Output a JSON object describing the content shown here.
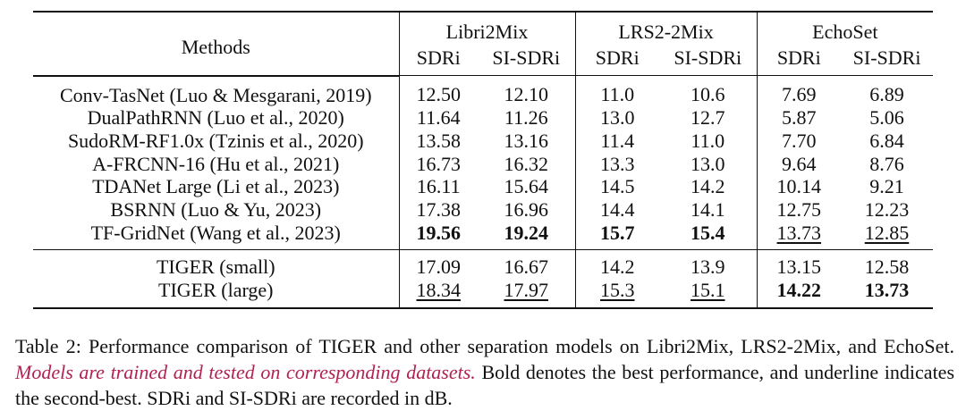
{
  "table": {
    "methods_header": "Methods",
    "groups": [
      {
        "name": "Libri2Mix",
        "metrics": [
          "SDRi",
          "SI-SDRi"
        ]
      },
      {
        "name": "LRS2-2Mix",
        "metrics": [
          "SDRi",
          "SI-SDRi"
        ]
      },
      {
        "name": "EchoSet",
        "metrics": [
          "SDRi",
          "SI-SDRi"
        ]
      }
    ],
    "rows": [
      {
        "method": "Conv-TasNet (Luo & Mesgarani, 2019)",
        "values": [
          "12.50",
          "12.10",
          "11.0",
          "10.6",
          "7.69",
          "6.89"
        ]
      },
      {
        "method": "DualPathRNN (Luo et al., 2020)",
        "values": [
          "11.64",
          "11.26",
          "13.0",
          "12.7",
          "5.87",
          "5.06"
        ]
      },
      {
        "method": "SudoRM-RF1.0x (Tzinis et al., 2020)",
        "values": [
          "13.58",
          "13.16",
          "11.4",
          "11.0",
          "7.70",
          "6.84"
        ]
      },
      {
        "method": "A-FRCNN-16 (Hu et al., 2021)",
        "values": [
          "16.73",
          "16.32",
          "13.3",
          "13.0",
          "9.64",
          "8.76"
        ]
      },
      {
        "method": "TDANet Large (Li et al., 2023)",
        "values": [
          "16.11",
          "15.64",
          "14.5",
          "14.2",
          "10.14",
          "9.21"
        ]
      },
      {
        "method": "BSRNN (Luo & Yu, 2023)",
        "values": [
          "17.38",
          "16.96",
          "14.4",
          "14.1",
          "12.75",
          "12.23"
        ]
      },
      {
        "method": "TF-GridNet (Wang et al., 2023)",
        "values": [
          "19.56",
          "19.24",
          "15.7",
          "15.4",
          "13.73",
          "12.85"
        ]
      },
      {
        "method": "TIGER (small)",
        "values": [
          "17.09",
          "16.67",
          "14.2",
          "13.9",
          "13.15",
          "12.58"
        ]
      },
      {
        "method": "TIGER (large)",
        "values": [
          "18.34",
          "17.97",
          "15.3",
          "15.1",
          "14.22",
          "13.73"
        ]
      }
    ],
    "bold_cells": [
      [
        6,
        0
      ],
      [
        6,
        1
      ],
      [
        6,
        2
      ],
      [
        6,
        3
      ],
      [
        8,
        4
      ],
      [
        8,
        5
      ]
    ],
    "underline_cells": [
      [
        6,
        4
      ],
      [
        6,
        5
      ],
      [
        8,
        0
      ],
      [
        8,
        1
      ],
      [
        8,
        2
      ],
      [
        8,
        3
      ]
    ]
  },
  "caption": {
    "label": "Table 2:",
    "text_1": "Performance comparison of TIGER and other separation models on Libri2Mix, LRS2-2Mix, and EchoSet.",
    "highlight": "Models are trained and tested on corresponding datasets.",
    "text_2": "Bold denotes the best performance, and underline indicates the second-best. SDRi and SI-SDRi are recorded in dB.",
    "highlight_color": "#b22250"
  }
}
